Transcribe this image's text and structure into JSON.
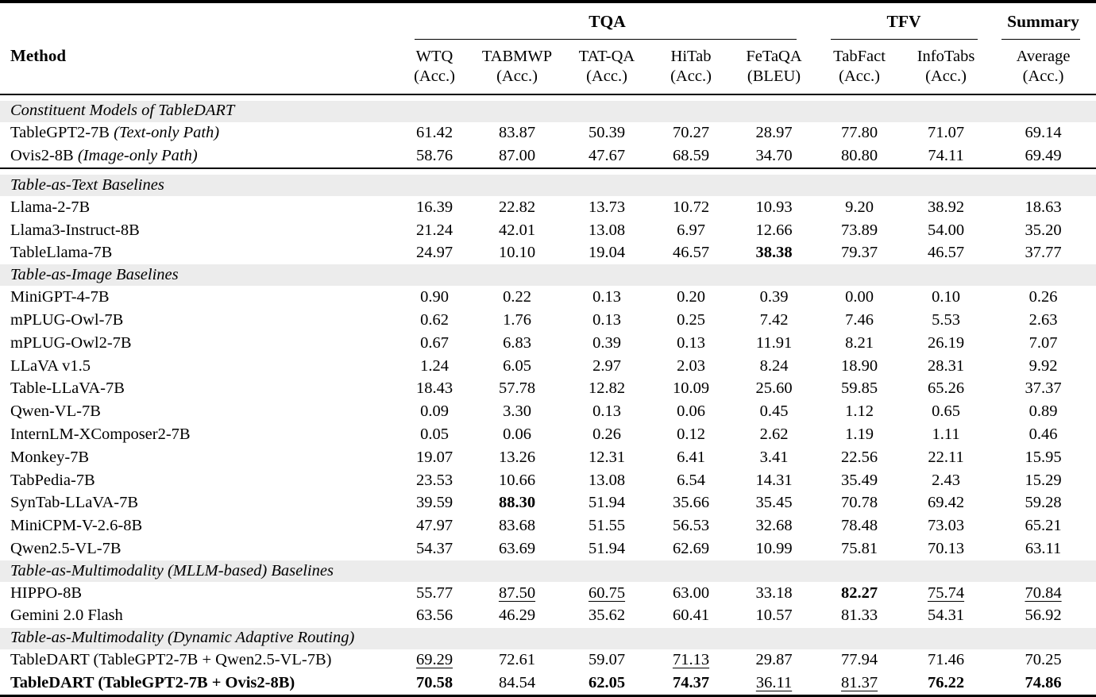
{
  "colors": {
    "background": "#ffffff",
    "text": "#000000",
    "rule": "#000000",
    "section_band": "#ececec"
  },
  "table": {
    "method_header": "Method",
    "groups": [
      {
        "label": "TQA",
        "span": 5
      },
      {
        "label": "TFV",
        "span": 2
      },
      {
        "label": "Summary",
        "span": 1
      }
    ],
    "columns": [
      {
        "name": "WTQ",
        "metric": "(Acc.)"
      },
      {
        "name": "TABMWP",
        "metric": "(Acc.)"
      },
      {
        "name": "TAT-QA",
        "metric": "(Acc.)"
      },
      {
        "name": "HiTab",
        "metric": "(Acc.)"
      },
      {
        "name": "FeTaQA",
        "metric": "(BLEU)"
      },
      {
        "name": "TabFact",
        "metric": "(Acc.)"
      },
      {
        "name": "InfoTabs",
        "metric": "(Acc.)"
      },
      {
        "name": "Average",
        "metric": "(Acc.)"
      }
    ],
    "sections": [
      {
        "title": "Constituent Models of TableDART",
        "spacer_before": true,
        "rule_after": true,
        "rows": [
          {
            "method": "TableGPT2-7B",
            "note": "(Text-only Path)",
            "values": [
              "61.42",
              "83.87",
              "50.39",
              "70.27",
              "28.97",
              "77.80",
              "71.07",
              "69.14"
            ]
          },
          {
            "method": "Ovis2-8B",
            "note": "(Image-only Path)",
            "values": [
              "58.76",
              "87.00",
              "47.67",
              "68.59",
              "34.70",
              "80.80",
              "74.11",
              "69.49"
            ]
          }
        ]
      },
      {
        "title": "Table-as-Text Baselines",
        "spacer_before": true,
        "rule_after": false,
        "rows": [
          {
            "method": "Llama-2-7B",
            "values": [
              "16.39",
              "22.82",
              "13.73",
              "10.72",
              "10.93",
              "9.20",
              "38.92",
              "18.63"
            ]
          },
          {
            "method": "Llama3-Instruct-8B",
            "values": [
              "21.24",
              "42.01",
              "13.08",
              "6.97",
              "12.66",
              "73.89",
              "54.00",
              "35.20"
            ]
          },
          {
            "method": "TableLlama-7B",
            "values": [
              "24.97",
              "10.10",
              "19.04",
              "46.57",
              "38.38",
              "79.37",
              "46.57",
              "37.77"
            ],
            "bold_cols": [
              4
            ]
          }
        ]
      },
      {
        "title": "Table-as-Image Baselines",
        "spacer_before": false,
        "rule_after": false,
        "rows": [
          {
            "method": "MiniGPT-4-7B",
            "values": [
              "0.90",
              "0.22",
              "0.13",
              "0.20",
              "0.39",
              "0.00",
              "0.10",
              "0.26"
            ]
          },
          {
            "method": "mPLUG-Owl-7B",
            "values": [
              "0.62",
              "1.76",
              "0.13",
              "0.25",
              "7.42",
              "7.46",
              "5.53",
              "2.63"
            ]
          },
          {
            "method": "mPLUG-Owl2-7B",
            "values": [
              "0.67",
              "6.83",
              "0.39",
              "0.13",
              "11.91",
              "8.21",
              "26.19",
              "7.07"
            ]
          },
          {
            "method": "LLaVA v1.5",
            "values": [
              "1.24",
              "6.05",
              "2.97",
              "2.03",
              "8.24",
              "18.90",
              "28.31",
              "9.92"
            ]
          },
          {
            "method": "Table-LLaVA-7B",
            "values": [
              "18.43",
              "57.78",
              "12.82",
              "10.09",
              "25.60",
              "59.85",
              "65.26",
              "37.37"
            ]
          },
          {
            "method": "Qwen-VL-7B",
            "values": [
              "0.09",
              "3.30",
              "0.13",
              "0.06",
              "0.45",
              "1.12",
              "0.65",
              "0.89"
            ]
          },
          {
            "method": "InternLM-XComposer2-7B",
            "values": [
              "0.05",
              "0.06",
              "0.26",
              "0.12",
              "2.62",
              "1.19",
              "1.11",
              "0.46"
            ]
          },
          {
            "method": "Monkey-7B",
            "values": [
              "19.07",
              "13.26",
              "12.31",
              "6.41",
              "3.41",
              "22.56",
              "22.11",
              "15.95"
            ]
          },
          {
            "method": "TabPedia-7B",
            "values": [
              "23.53",
              "10.66",
              "13.08",
              "6.54",
              "14.31",
              "35.49",
              "2.43",
              "15.29"
            ]
          },
          {
            "method": "SynTab-LLaVA-7B",
            "values": [
              "39.59",
              "88.30",
              "51.94",
              "35.66",
              "35.45",
              "70.78",
              "69.42",
              "59.28"
            ],
            "bold_cols": [
              1
            ]
          },
          {
            "method": "MiniCPM-V-2.6-8B",
            "values": [
              "47.97",
              "83.68",
              "51.55",
              "56.53",
              "32.68",
              "78.48",
              "73.03",
              "65.21"
            ]
          },
          {
            "method": "Qwen2.5-VL-7B",
            "values": [
              "54.37",
              "63.69",
              "51.94",
              "62.69",
              "10.99",
              "75.81",
              "70.13",
              "63.11"
            ]
          }
        ]
      },
      {
        "title": "Table-as-Multimodality (MLLM-based) Baselines",
        "spacer_before": false,
        "rule_after": false,
        "rows": [
          {
            "method": "HIPPO-8B",
            "values": [
              "55.77",
              "87.50",
              "60.75",
              "63.00",
              "33.18",
              "82.27",
              "75.74",
              "70.84"
            ],
            "bold_cols": [
              5
            ],
            "underline_cols": [
              1,
              2,
              6,
              7
            ]
          },
          {
            "method": "Gemini 2.0 Flash",
            "values": [
              "63.56",
              "46.29",
              "35.62",
              "60.41",
              "10.57",
              "81.33",
              "54.31",
              "56.92"
            ]
          }
        ]
      },
      {
        "title": "Table-as-Multimodality (Dynamic Adaptive Routing)",
        "spacer_before": false,
        "rule_after": false,
        "rows": [
          {
            "method": "TableDART (TableGPT2-7B + Qwen2.5-VL-7B)",
            "values": [
              "69.29",
              "72.61",
              "59.07",
              "71.13",
              "29.87",
              "77.94",
              "71.46",
              "70.25"
            ],
            "underline_cols": [
              0,
              3
            ]
          },
          {
            "method": "TableDART (TableGPT2-7B + Ovis2-8B)",
            "bold_method": true,
            "values": [
              "70.58",
              "84.54",
              "62.05",
              "74.37",
              "36.11",
              "81.37",
              "76.22",
              "74.86"
            ],
            "bold_cols": [
              0,
              2,
              3,
              6,
              7
            ],
            "underline_cols": [
              4,
              5
            ]
          }
        ]
      }
    ]
  }
}
